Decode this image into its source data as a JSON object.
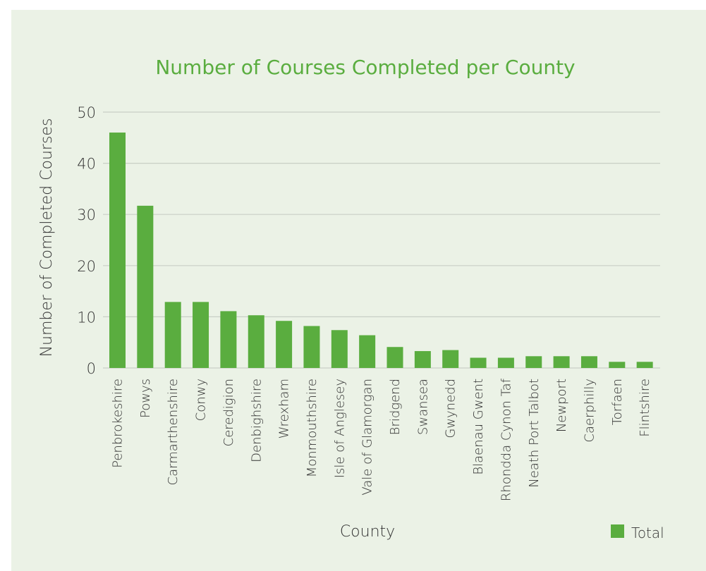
{
  "colors": {
    "panel_background": "#ebf2e6",
    "bar": "#5aad3f",
    "title": "#5aad3f",
    "gridline": "#c9cfc5",
    "text": "#333333"
  },
  "chart_data": {
    "type": "bar",
    "title": "Number of Courses Completed per County",
    "xlabel": "County",
    "ylabel": "Number of Completed Courses",
    "ylim": [
      0,
      50
    ],
    "yticks": [
      0,
      10,
      20,
      30,
      40,
      50
    ],
    "grid": true,
    "legend_position": "bottom-right",
    "categories": [
      "Penbrokeshire",
      "Powys",
      "Carmarthenshire",
      "Conwy",
      "Ceredigion",
      "Denbighshire",
      "Wrexham",
      "Monmouthshire",
      "Isle of Anglesey",
      "Vale of Glamorgan",
      "Bridgend",
      "Swansea",
      "Gwynedd",
      "Blaenau Gwent",
      "Rhondda Cynon Taf",
      "Neath Port Talbot",
      "Newport",
      "Caerphilly",
      "Torfaen",
      "Flintshire"
    ],
    "series": [
      {
        "name": "Total",
        "values": [
          46,
          31.7,
          12.9,
          12.9,
          11.1,
          10.3,
          9.2,
          8.2,
          7.4,
          6.4,
          4.1,
          3.3,
          3.5,
          2.0,
          2.0,
          2.3,
          2.3,
          2.3,
          1.2,
          1.2
        ]
      }
    ]
  }
}
